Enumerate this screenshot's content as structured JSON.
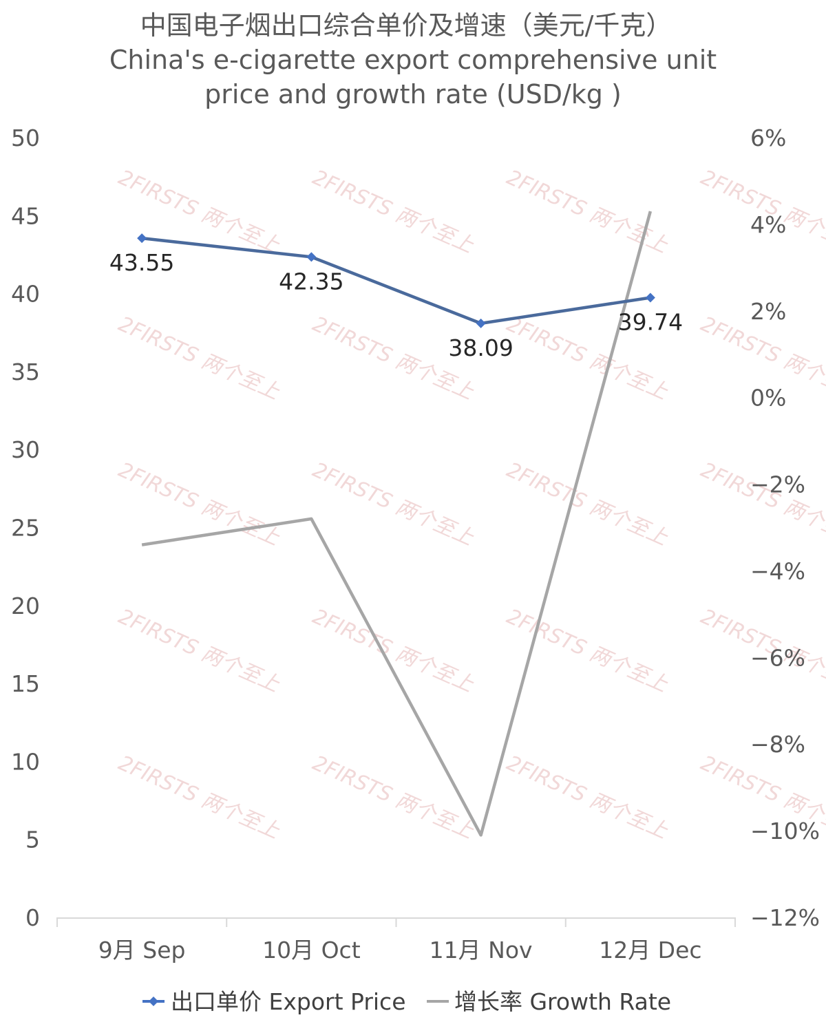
{
  "chart_data": {
    "type": "line",
    "title": "中国电子烟出口综合单价及增速（美元/千克）",
    "subtitle_line1": "China's e-cigarette export comprehensive unit",
    "subtitle_line2": "price and growth rate (USD/kg )",
    "categories": [
      "9月 Sep",
      "10月 Oct",
      "11月 Nov",
      "12月 Dec"
    ],
    "series": [
      {
        "name": "出口单价 Export Price",
        "axis": "left",
        "values": [
          43.55,
          42.35,
          38.09,
          39.74
        ],
        "data_labels": [
          "43.55",
          "42.35",
          "38.09",
          "39.74"
        ],
        "color": "#4a6a9c",
        "marker_color": "#4472c4"
      },
      {
        "name": "增长率 Growth Rate",
        "axis": "right",
        "values": [
          -3.4,
          -2.8,
          -10.1,
          4.3
        ],
        "color": "#a6a6a6"
      }
    ],
    "y_left": {
      "min": 0,
      "max": 50,
      "ticks": [
        "0",
        "5",
        "10",
        "15",
        "20",
        "25",
        "30",
        "35",
        "40",
        "45",
        "50"
      ]
    },
    "y_right": {
      "min": -12,
      "max": 6,
      "ticks": [
        "-12%",
        "-10%",
        "-8%",
        "-6%",
        "-4%",
        "-2%",
        "0%",
        "2%",
        "4%",
        "6%"
      ]
    },
    "grid": false,
    "legend_position": "bottom",
    "watermark": "2FIRSTS 两个至上"
  }
}
